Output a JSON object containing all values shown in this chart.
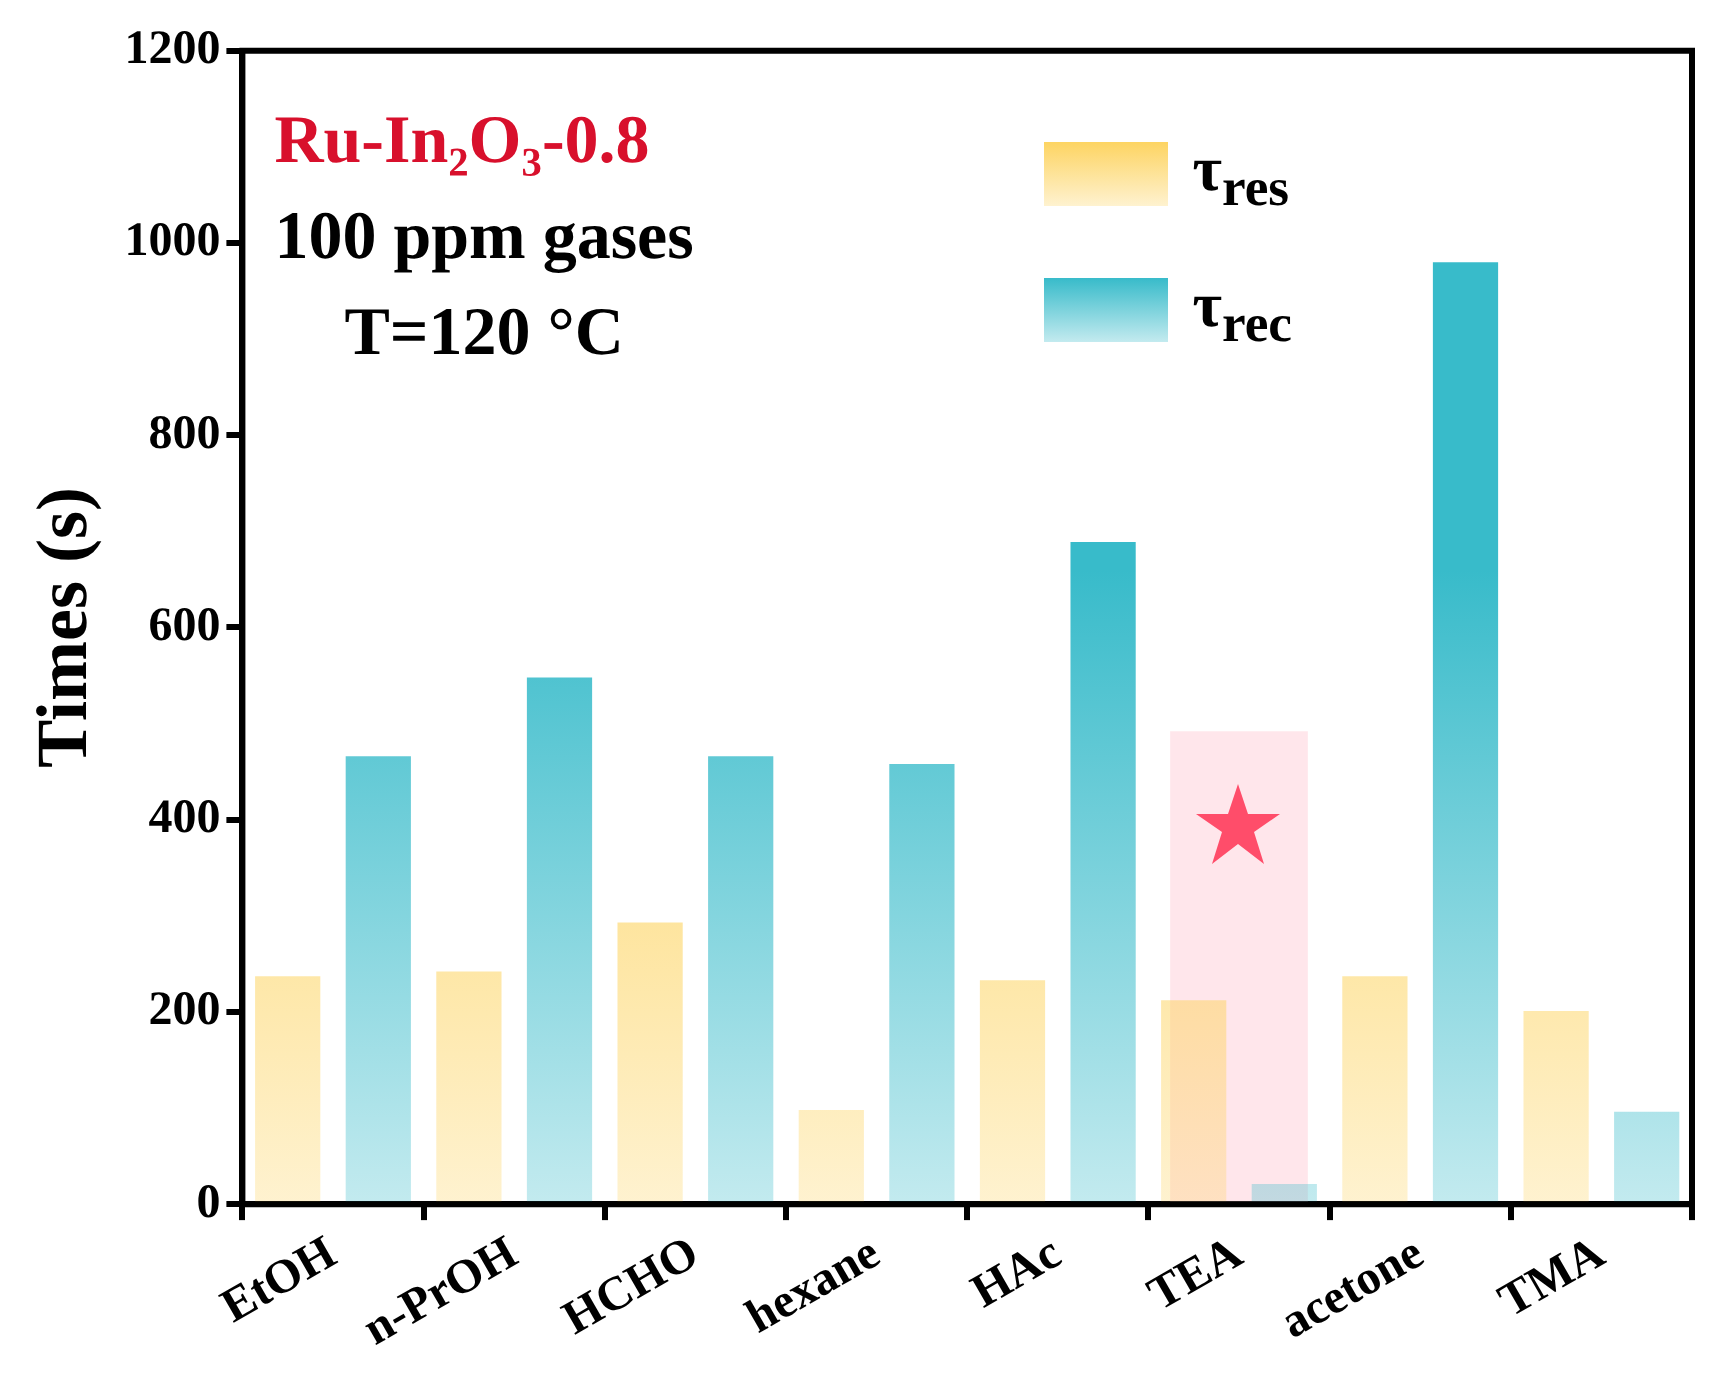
{
  "chart_data": {
    "type": "bar",
    "ylabel": "Times (s)",
    "categories": [
      "EtOH",
      "n-PrOH",
      "HCHO",
      "hexane",
      "HAc",
      "TEA",
      "acetone",
      "TMA"
    ],
    "series": [
      {
        "name": "τ$_{res}$",
        "color": "#fdd462",
        "values": [
          237,
          242,
          293,
          98,
          233,
          212,
          237,
          201
        ]
      },
      {
        "name": "τ$_{rec}$",
        "color": "#38bbca",
        "values": [
          466,
          548,
          466,
          458,
          689,
          21,
          980,
          96
        ]
      }
    ],
    "ylim": [
      0,
      1200
    ],
    "yticks": [
      0,
      200,
      400,
      600,
      800,
      1000,
      1200
    ],
    "grid": false,
    "legend": "top right",
    "bands": [
      {
        "axis": "x",
        "from": "TEA",
        "to": "TEA",
        "color": "#ffd6dd"
      }
    ],
    "annotations": [
      "Ru-In₂O₃-0.8",
      "100 ppm gases",
      "T=120 °C"
    ]
  }
}
